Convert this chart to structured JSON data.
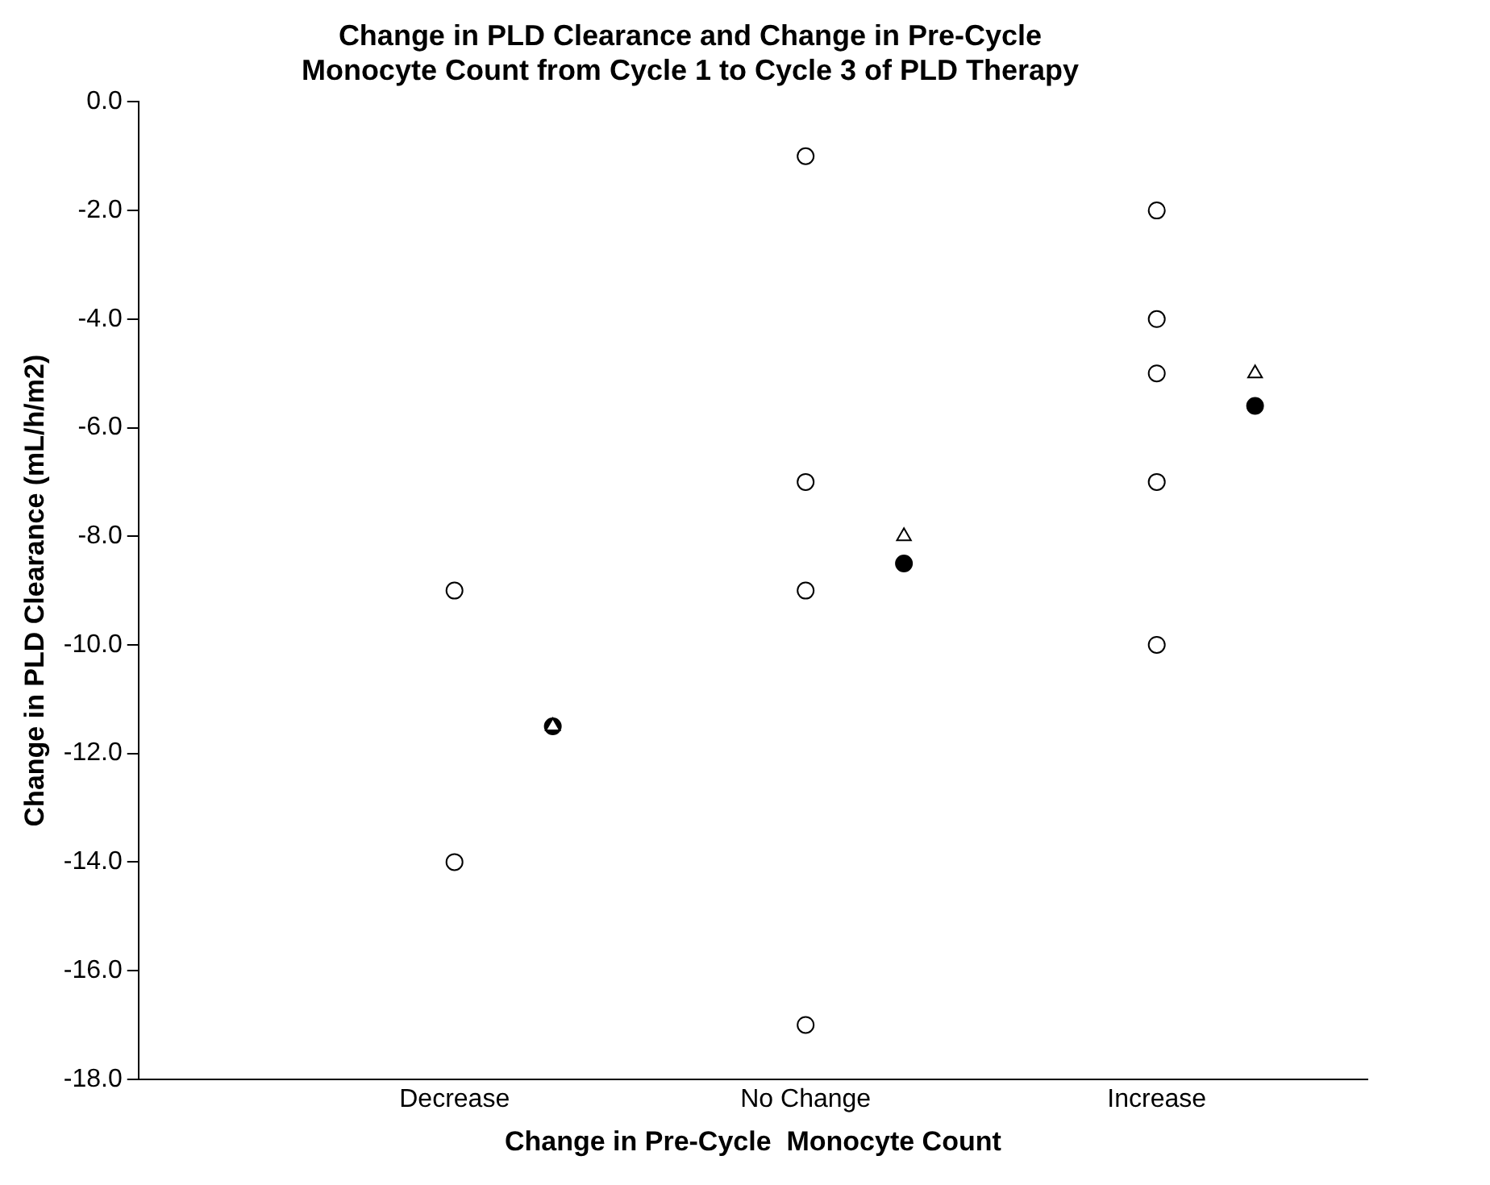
{
  "chart_data": {
    "type": "scatter",
    "title": "Change in PLD Clearance and Change in Pre-Cycle\nMonocyte Count from Cycle 1 to Cycle 3 of PLD Therapy",
    "xlabel": "Change in Pre-Cycle  Monocyte Count",
    "ylabel": "Change in PLD Clearance (mL/h/m2)",
    "categories": [
      "Decrease",
      "No Change",
      "Increase"
    ],
    "series": [
      {
        "color": "#ffffff",
        "marker": "circle",
        "x": [
          "Decrease",
          "Decrease",
          "No Change",
          "No Change",
          "No Change",
          "No Change",
          "Increase",
          "Increase",
          "Increase",
          "Increase",
          "Increase"
        ],
        "values": [
          -9,
          -14,
          -1,
          -7,
          -9,
          -17,
          -2,
          -4,
          -5,
          -7,
          -10
        ]
      },
      {
        "color": "#ffffff",
        "marker": "triangle",
        "x": [
          "Decrease",
          "No Change",
          "Increase"
        ],
        "values": [
          -11.5,
          -8.0,
          -5.0
        ]
      },
      {
        "color": "#000000",
        "marker": "circle",
        "x": [
          "Decrease",
          "No Change",
          "Increase"
        ],
        "values": [
          -11.5,
          -8.5,
          -5.6
        ]
      }
    ],
    "ylim": [
      -18,
      0
    ],
    "yticks": [
      {
        "value": 0,
        "label": "0.0"
      },
      {
        "value": -2,
        "label": "-2.0"
      },
      {
        "value": -4,
        "label": "-4.0"
      },
      {
        "value": -6,
        "label": "-6.0"
      },
      {
        "value": -8,
        "label": "-8.0"
      },
      {
        "value": -10,
        "label": "-10.0"
      },
      {
        "value": -12,
        "label": "-12.0"
      },
      {
        "value": -14,
        "label": "-14.0"
      },
      {
        "value": -16,
        "label": "-16.0"
      },
      {
        "value": -18,
        "label": "-18.0"
      }
    ],
    "grid": false,
    "legend": false
  }
}
